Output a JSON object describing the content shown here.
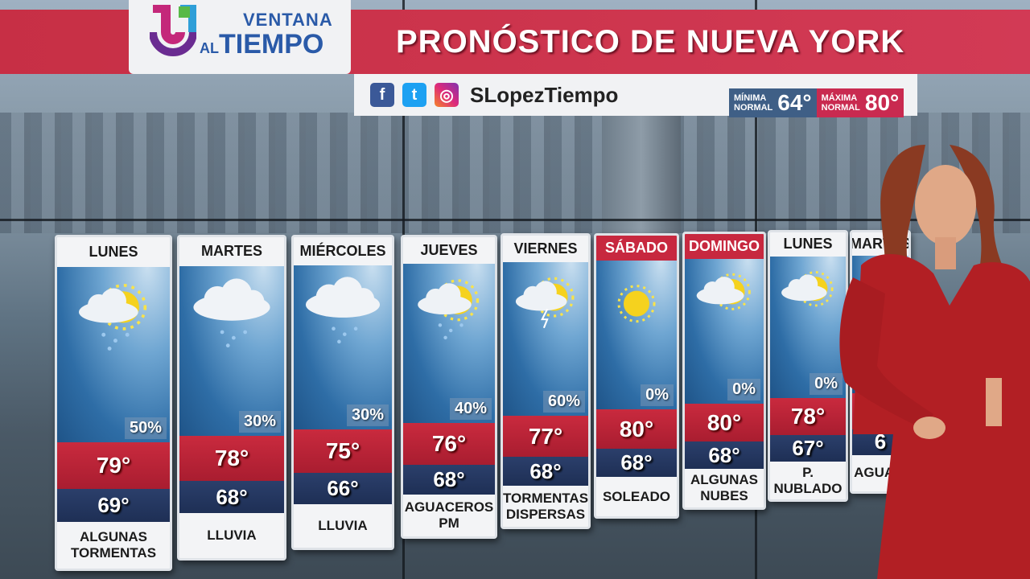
{
  "brand": {
    "line1": "VENTANA",
    "line2_small": "AL",
    "line2": "TIEMPO"
  },
  "header": {
    "title": "PRONÓSTICO DE NUEVA YORK",
    "social_handle": "SLopezTiempo",
    "social_icons": [
      "facebook-icon",
      "twitter-icon",
      "instagram-icon"
    ]
  },
  "normals": {
    "min_label_1": "MÍNIMA",
    "min_label_2": "NORMAL",
    "min_value": "64°",
    "max_label_1": "MÁXIMA",
    "max_label_2": "NORMAL",
    "max_value": "80°"
  },
  "colors": {
    "brand_red": "#c92a3e",
    "navy": "#1e2f55",
    "sky_blue": "#2e6da6",
    "normals_blue": "#3f5f86"
  },
  "forecast": [
    {
      "day": "LUNES",
      "icon": "partly-cloudy-rain-icon",
      "precip": "50%",
      "high": "79°",
      "low": "69°",
      "condition": "ALGUNAS TORMENTAS",
      "weekend": false
    },
    {
      "day": "MARTES",
      "icon": "cloud-rain-icon",
      "precip": "30%",
      "high": "78°",
      "low": "68°",
      "condition": "LLUVIA",
      "weekend": false
    },
    {
      "day": "MIÉRCOLES",
      "icon": "cloud-rain-icon",
      "precip": "30%",
      "high": "75°",
      "low": "66°",
      "condition": "LLUVIA",
      "weekend": false
    },
    {
      "day": "JUEVES",
      "icon": "sun-cloud-showers-icon",
      "precip": "40%",
      "high": "76°",
      "low": "68°",
      "condition": "AGUACEROS PM",
      "weekend": false
    },
    {
      "day": "VIERNES",
      "icon": "sun-cloud-storm-icon",
      "precip": "60%",
      "high": "77°",
      "low": "68°",
      "condition": "TORMENTAS DISPERSAS",
      "weekend": false
    },
    {
      "day": "SÁBADO",
      "icon": "sunny-icon",
      "precip": "0%",
      "high": "80°",
      "low": "68°",
      "condition": "SOLEADO",
      "weekend": true
    },
    {
      "day": "DOMINGO",
      "icon": "partly-cloudy-icon",
      "precip": "0%",
      "high": "80°",
      "low": "68°",
      "condition": "ALGUNAS NUBES",
      "weekend": true
    },
    {
      "day": "LUNES",
      "icon": "partly-cloudy-icon",
      "precip": "0%",
      "high": "78°",
      "low": "67°",
      "condition": "P. NUBLADO",
      "weekend": false
    },
    {
      "day": "MARTES",
      "icon": "partly-cloudy-icon",
      "precip": "",
      "high": "8",
      "low": "6",
      "condition": "AGUA A",
      "weekend": false
    }
  ]
}
